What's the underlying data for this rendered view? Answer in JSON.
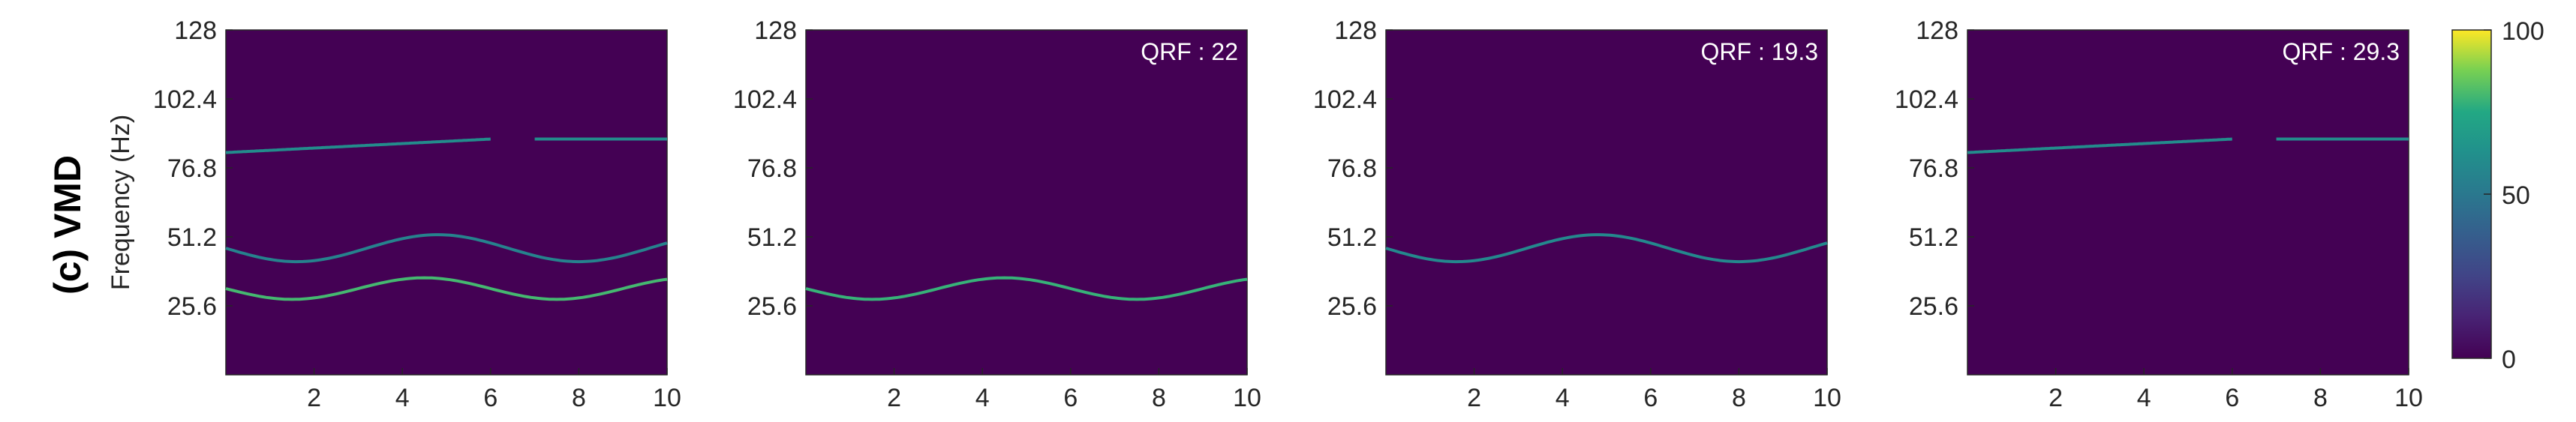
{
  "figure": {
    "row_title": "(c) VMD",
    "ylabel": "Frequency (Hz)",
    "background_color": "#440154",
    "colormap": "viridis"
  },
  "colorbar": {
    "min": 0,
    "max": 100,
    "ticks": [
      "0",
      "50",
      "100"
    ]
  },
  "chart_data": [
    {
      "type": "heatmap",
      "title": "",
      "annotation": "",
      "x_ticks": [
        "2",
        "4",
        "6",
        "8",
        "10"
      ],
      "y_ticks": [
        "25.6",
        "51.2",
        "76.8",
        "102.4",
        "128"
      ],
      "xlim": [
        0,
        10
      ],
      "ylim": [
        0,
        128
      ],
      "tracks": [
        {
          "segments": [
            {
              "x0": 0,
              "x1": 6,
              "f0": 82.5,
              "f1": 87.5,
              "shape": "linear"
            },
            {
              "x0": 7,
              "x1": 10,
              "f0": 87.5,
              "f1": 87.5,
              "shape": "linear"
            }
          ],
          "intensity": 60
        },
        {
          "segments": [
            {
              "x0": 0,
              "x1": 10,
              "center": 47,
              "amp": 5,
              "period": 6.4,
              "phase": 0,
              "shape": "sine"
            }
          ],
          "intensity": 55
        },
        {
          "segments": [
            {
              "x0": 0,
              "x1": 10,
              "center": 32,
              "amp": 4,
              "period": 6,
              "phase": 0,
              "shape": "sine"
            }
          ],
          "intensity": 80
        }
      ]
    },
    {
      "type": "heatmap",
      "title": "",
      "annotation": "QRF : 22",
      "x_ticks": [
        "2",
        "4",
        "6",
        "8",
        "10"
      ],
      "y_ticks": [
        "25.6",
        "51.2",
        "76.8",
        "102.4",
        "128"
      ],
      "xlim": [
        0,
        10
      ],
      "ylim": [
        0,
        128
      ],
      "tracks": [
        {
          "segments": [
            {
              "x0": 0,
              "x1": 10,
              "center": 32,
              "amp": 4,
              "period": 6,
              "phase": 0,
              "shape": "sine"
            }
          ],
          "intensity": 78
        }
      ]
    },
    {
      "type": "heatmap",
      "title": "",
      "annotation": "QRF : 19.3",
      "x_ticks": [
        "2",
        "4",
        "6",
        "8",
        "10"
      ],
      "y_ticks": [
        "25.6",
        "51.2",
        "76.8",
        "102.4",
        "128"
      ],
      "xlim": [
        0,
        10
      ],
      "ylim": [
        0,
        128
      ],
      "tracks": [
        {
          "segments": [
            {
              "x0": 0,
              "x1": 10,
              "center": 47,
              "amp": 5,
              "period": 6.4,
              "phase": 0,
              "shape": "sine"
            }
          ],
          "intensity": 58
        }
      ]
    },
    {
      "type": "heatmap",
      "title": "",
      "annotation": "QRF : 29.3",
      "x_ticks": [
        "2",
        "4",
        "6",
        "8",
        "10"
      ],
      "y_ticks": [
        "25.6",
        "51.2",
        "76.8",
        "102.4",
        "128"
      ],
      "xlim": [
        0,
        10
      ],
      "ylim": [
        0,
        128
      ],
      "tracks": [
        {
          "segments": [
            {
              "x0": 0,
              "x1": 6,
              "f0": 82.5,
              "f1": 87.5,
              "shape": "linear"
            },
            {
              "x0": 7,
              "x1": 10,
              "f0": 87.5,
              "f1": 87.5,
              "shape": "linear"
            }
          ],
          "intensity": 60
        }
      ]
    }
  ]
}
